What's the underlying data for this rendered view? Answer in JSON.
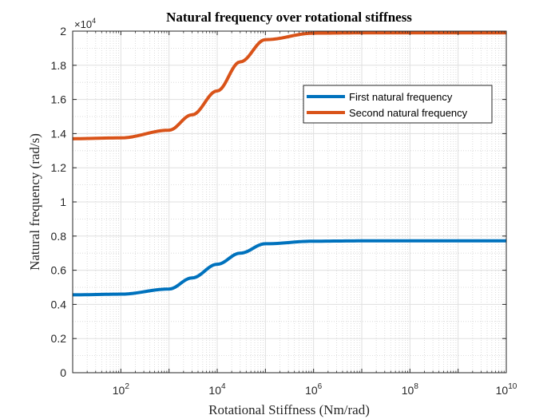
{
  "chart_data": {
    "type": "line",
    "title": "Natural frequency over rotational stiffness",
    "xlabel": "Rotational Stiffness (Nm/rad)",
    "ylabel": "Natural frequency (rad/s)",
    "x_scale": "log",
    "xlim": [
      10,
      10000000000
    ],
    "ylim": [
      0,
      20000
    ],
    "y_exponent_label": "×10",
    "y_exponent_power": "4",
    "x_tick_labels": [
      {
        "value": 100,
        "base": "10",
        "exp": "2"
      },
      {
        "value": 10000,
        "base": "10",
        "exp": "4"
      },
      {
        "value": 1000000,
        "base": "10",
        "exp": "6"
      },
      {
        "value": 100000000,
        "base": "10",
        "exp": "8"
      },
      {
        "value": 10000000000,
        "base": "10",
        "exp": "10"
      }
    ],
    "y_ticks": [
      0,
      2000,
      4000,
      6000,
      8000,
      10000,
      12000,
      14000,
      16000,
      18000,
      20000
    ],
    "y_tick_labels": [
      "0",
      "0.2",
      "0.4",
      "0.6",
      "0.8",
      "1",
      "1.2",
      "1.4",
      "1.6",
      "1.8",
      "2"
    ],
    "grid": true,
    "minor_grid": true,
    "legend_position": "upper-right-inside",
    "x": [
      10,
      100,
      1000,
      3000,
      10000,
      30000,
      100000,
      1000000,
      10000000,
      100000000,
      1000000000,
      10000000000
    ],
    "series": [
      {
        "name": "First natural frequency",
        "color": "#0072BD",
        "values": [
          4560,
          4600,
          4900,
          5550,
          6350,
          7000,
          7550,
          7700,
          7720,
          7720,
          7720,
          7720
        ]
      },
      {
        "name": "Second natural frequency",
        "color": "#D95319",
        "values": [
          13700,
          13750,
          14200,
          15100,
          16500,
          18200,
          19500,
          19880,
          19900,
          19900,
          19900,
          19900
        ]
      }
    ]
  }
}
